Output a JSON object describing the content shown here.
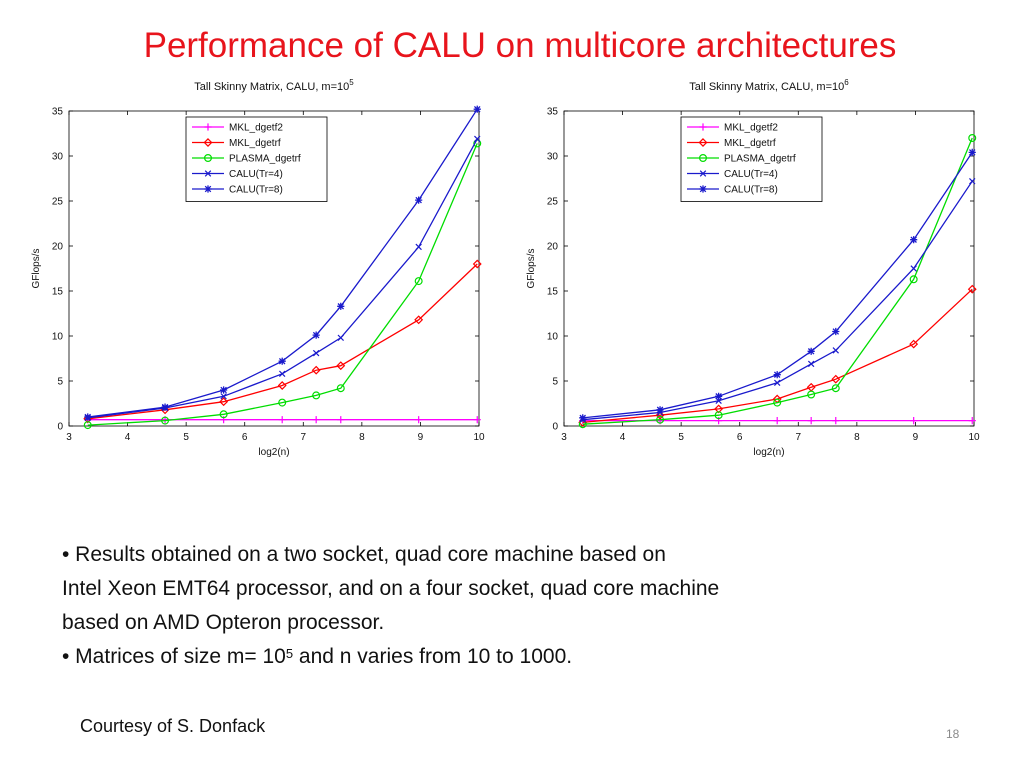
{
  "slide": {
    "title": "Performance of CALU on multicore architectures",
    "bullet1_line1": "• Results obtained on a two socket, quad core machine based on",
    "bullet1_line2": "Intel Xeon EMT64 processor, and on a four socket, quad core machine",
    "bullet1_line3": "based on AMD Opteron processor.",
    "bullet2_prefix": "• Matrices of size m= 10",
    "bullet2_sup": "5",
    "bullet2_suffix": " and n varies from 10 to 1000.",
    "courtesy": "Courtesy of S. Donfack",
    "page_number": "18"
  },
  "chart_data": [
    {
      "type": "line",
      "title": "Tall Skinny Matrix, CALU,  m=10",
      "title_sup": "5",
      "xlabel": "log2(n)",
      "ylabel": "GFlops/s",
      "xlim": [
        3,
        10
      ],
      "ylim": [
        0,
        35
      ],
      "xticks": [
        3,
        4,
        5,
        6,
        7,
        8,
        9,
        10
      ],
      "yticks": [
        0,
        5,
        10,
        15,
        20,
        25,
        30,
        35
      ],
      "legend_position": "top-left",
      "x": [
        3.32,
        4.64,
        5.64,
        6.64,
        7.22,
        7.64,
        8.97,
        9.97
      ],
      "series": [
        {
          "name": "MKL_dgetf2",
          "color": "#ff00ff",
          "marker": "plus",
          "values": [
            0.7,
            0.7,
            0.7,
            0.7,
            0.7,
            0.7,
            0.7,
            0.7
          ]
        },
        {
          "name": "MKL_dgetrf",
          "color": "#ff0000",
          "marker": "diamond",
          "values": [
            0.8,
            1.8,
            2.7,
            4.5,
            6.2,
            6.7,
            11.8,
            18.0
          ]
        },
        {
          "name": "PLASMA_dgetrf",
          "color": "#00dd00",
          "marker": "circle",
          "values": [
            0.1,
            0.6,
            1.3,
            2.6,
            3.4,
            4.2,
            16.1,
            31.4
          ]
        },
        {
          "name": "CALU(Tr=4)",
          "color": "#1a1acc",
          "marker": "x",
          "values": [
            0.9,
            2.0,
            3.3,
            5.8,
            8.1,
            9.8,
            19.9,
            31.9
          ]
        },
        {
          "name": "CALU(Tr=8)",
          "color": "#1a1acc",
          "marker": "star",
          "values": [
            1.0,
            2.1,
            4.0,
            7.2,
            10.1,
            13.3,
            25.1,
            35.2
          ]
        }
      ]
    },
    {
      "type": "line",
      "title": "Tall Skinny Matrix, CALU,  m=10",
      "title_sup": "6",
      "xlabel": "log2(n)",
      "ylabel": "GFlops/s",
      "xlim": [
        3,
        10
      ],
      "ylim": [
        0,
        35
      ],
      "xticks": [
        3,
        4,
        5,
        6,
        7,
        8,
        9,
        10
      ],
      "yticks": [
        0,
        5,
        10,
        15,
        20,
        25,
        30,
        35
      ],
      "legend_position": "top-left",
      "x": [
        3.32,
        4.64,
        5.64,
        6.64,
        7.22,
        7.64,
        8.97,
        9.97
      ],
      "series": [
        {
          "name": "MKL_dgetf2",
          "color": "#ff00ff",
          "marker": "plus",
          "values": [
            0.6,
            0.6,
            0.6,
            0.6,
            0.6,
            0.6,
            0.6,
            0.6
          ]
        },
        {
          "name": "MKL_dgetrf",
          "color": "#ff0000",
          "marker": "diamond",
          "values": [
            0.4,
            1.2,
            1.9,
            3.0,
            4.3,
            5.2,
            9.1,
            15.2
          ]
        },
        {
          "name": "PLASMA_dgetrf",
          "color": "#00dd00",
          "marker": "circle",
          "values": [
            0.2,
            0.7,
            1.2,
            2.6,
            3.5,
            4.2,
            16.3,
            32.0
          ]
        },
        {
          "name": "CALU(Tr=4)",
          "color": "#1a1acc",
          "marker": "x",
          "values": [
            0.7,
            1.5,
            2.8,
            4.8,
            6.9,
            8.4,
            17.5,
            27.2
          ]
        },
        {
          "name": "CALU(Tr=8)",
          "color": "#1a1acc",
          "marker": "star",
          "values": [
            0.9,
            1.8,
            3.3,
            5.7,
            8.3,
            10.5,
            20.7,
            30.4
          ]
        }
      ]
    }
  ]
}
